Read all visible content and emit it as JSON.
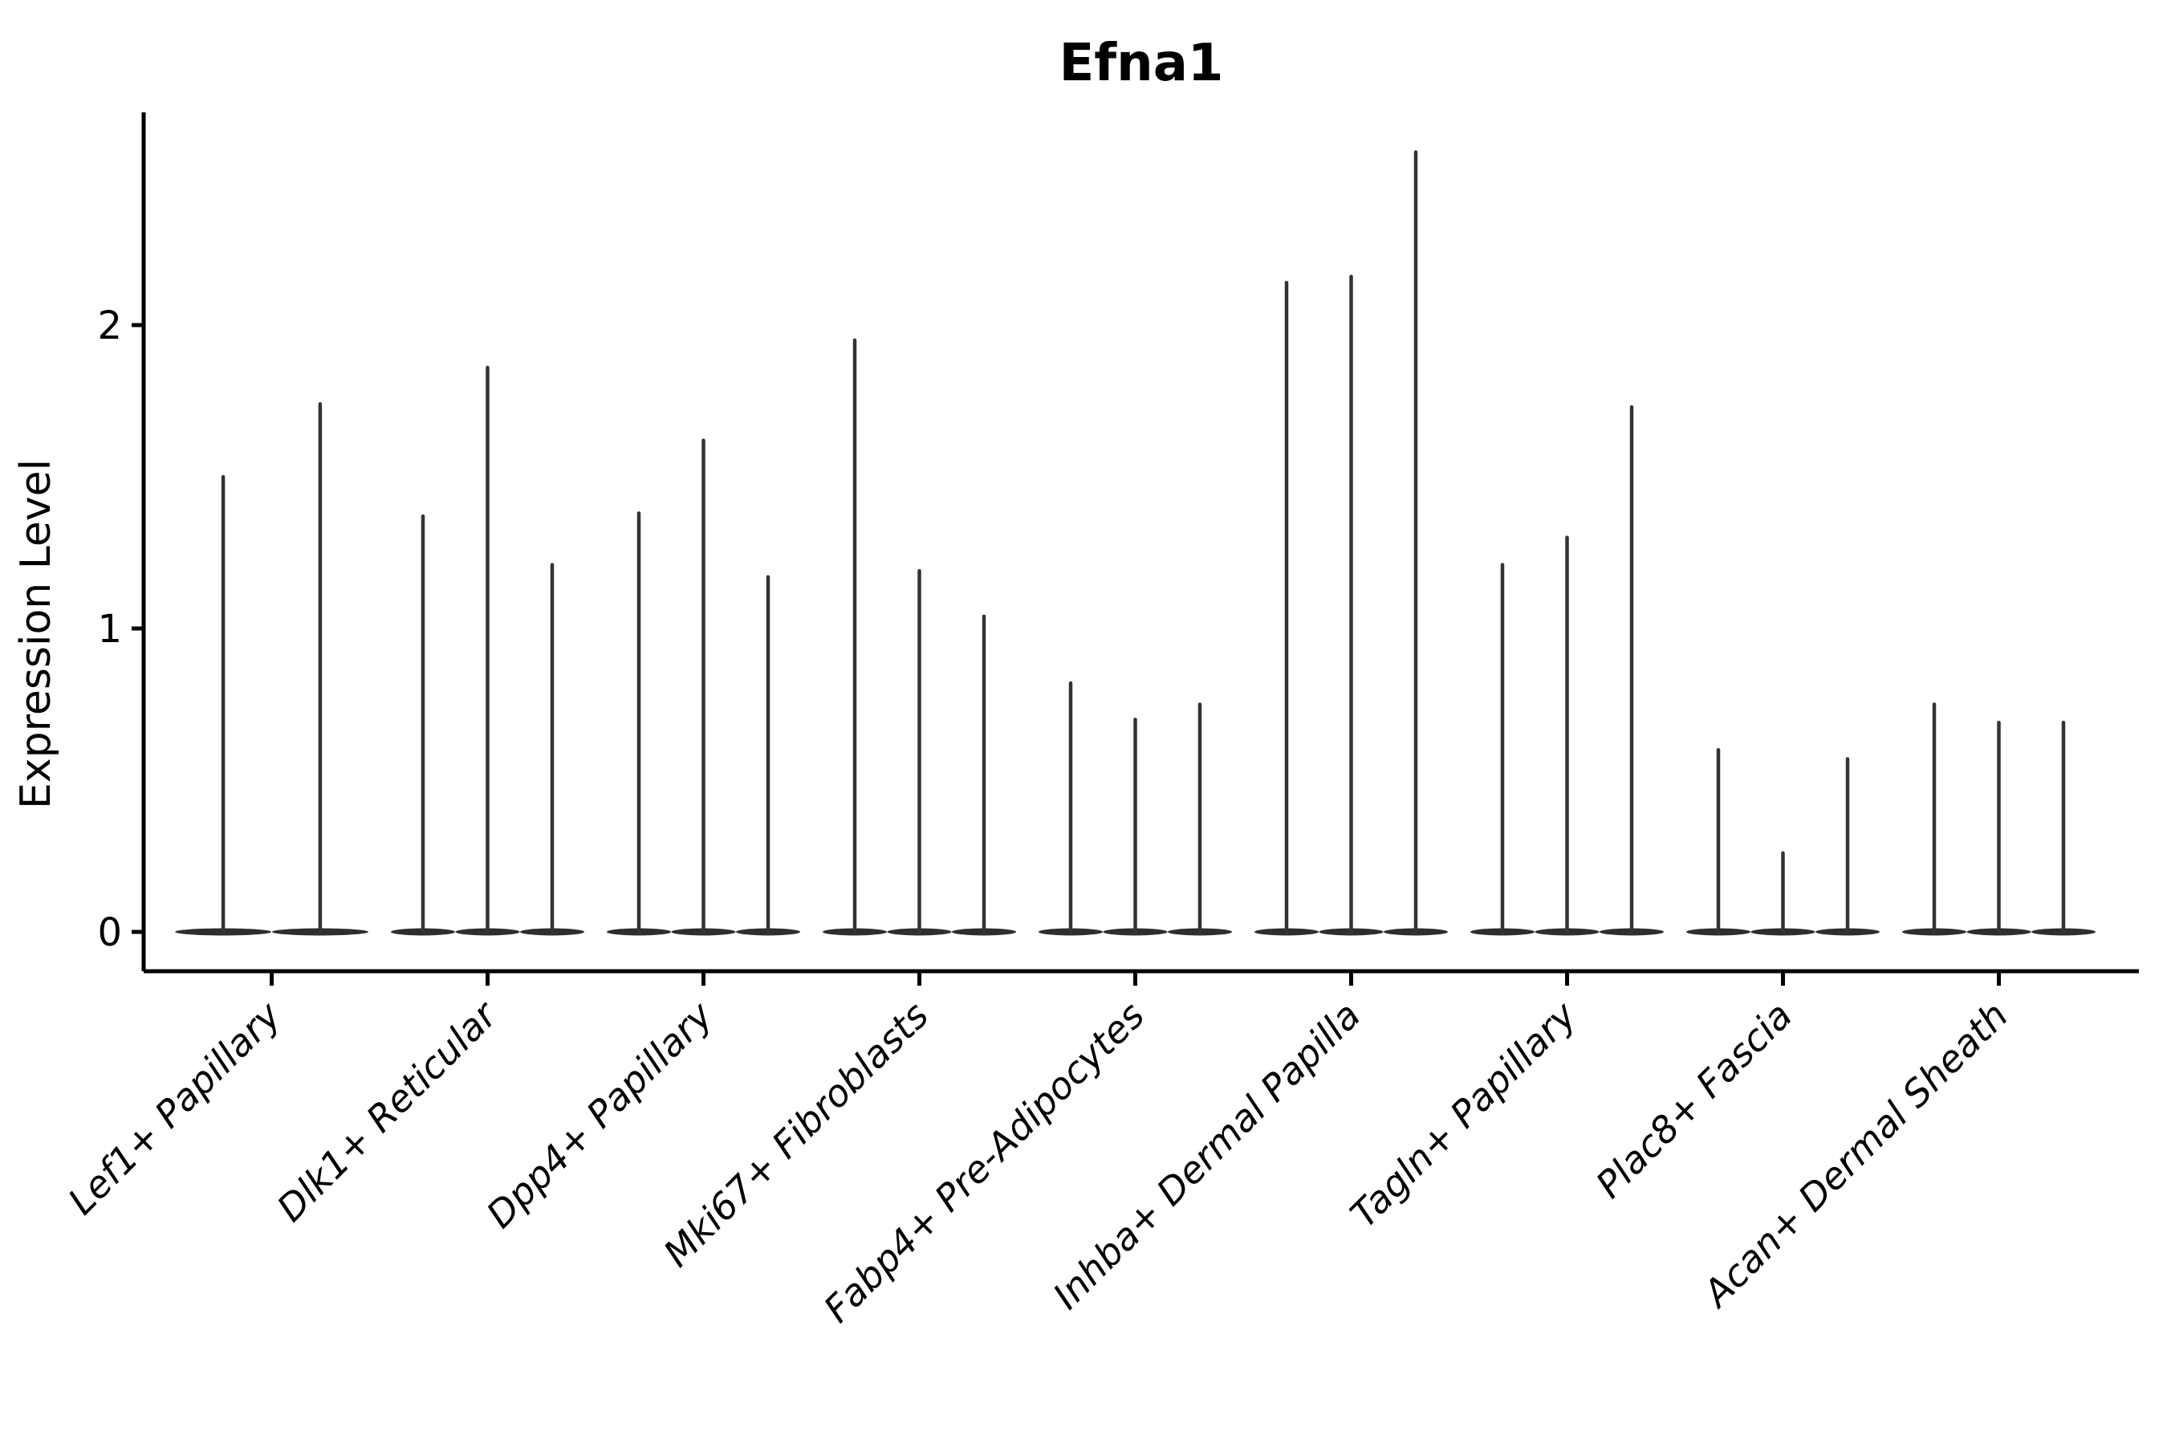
{
  "figure": {
    "title": "Efna1"
  },
  "chart_data": {
    "type": "violin",
    "title": "Efna1",
    "xlabel": "",
    "ylabel": "Expression Level",
    "y_ticks": [
      "0",
      "1",
      "2"
    ],
    "ylim": [
      -0.13,
      2.7
    ],
    "grid": false,
    "legend": "none",
    "background": "#ffffff",
    "description": "Violin plot of Efna1 expression per fibroblast cluster; each cluster shows extremely thin violins (flat body at 0 with a single tall thin peak). Values below are the peak (max expression) of each violin within the cluster.",
    "categories": [
      "Lef1+ Papillary",
      "Dlk1+ Reticular",
      "Dpp4+ Papillary",
      "Mki67+ Fibroblasts",
      "Fabp4+ Pre-Adipocytes",
      "Inhba+ Dermal Papilla",
      "Tagln+ Papillary",
      "Plac8+ Fascia",
      "Acan+ Dermal Sheath"
    ],
    "violin_max_values": [
      [
        1.5,
        1.74
      ],
      [
        1.37,
        1.86,
        1.21
      ],
      [
        1.38,
        1.62,
        1.17
      ],
      [
        1.95,
        1.19,
        1.04
      ],
      [
        0.82,
        0.7,
        0.75
      ],
      [
        2.14,
        2.16,
        2.57
      ],
      [
        1.21,
        1.3,
        1.73
      ],
      [
        0.6,
        0.26,
        0.57
      ],
      [
        0.75,
        0.69,
        0.69
      ]
    ],
    "colors": {
      "violin_line": "#333333",
      "violin_body": "#2e2e2e",
      "axis": "#000000",
      "text": "#000000"
    }
  }
}
